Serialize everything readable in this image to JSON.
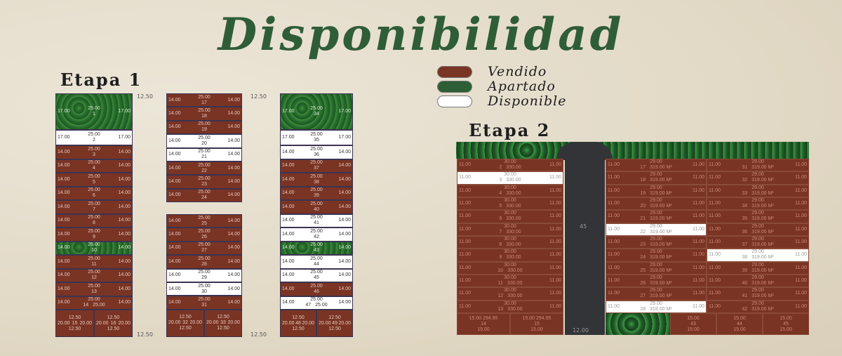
{
  "title": "Disponibilidad",
  "legend": [
    {
      "label": "Vendido",
      "color": "#7a3424"
    },
    {
      "label": "Apartado",
      "color": "#2e5e35"
    },
    {
      "label": "Disponible",
      "color": "#ffffff"
    }
  ],
  "etapa1": {
    "label": "Etapa 1",
    "street_labels": [
      "12.50",
      "12.50",
      "12.50",
      "12.50"
    ],
    "columns": [
      {
        "lots": [
          {
            "n": "1",
            "s": "apartado",
            "top": "25.00",
            "side": "17.00"
          },
          {
            "n": "2",
            "s": "disponible",
            "top": "25.00",
            "side": "17.00"
          },
          {
            "n": "3",
            "s": "vendido"
          },
          {
            "n": "4",
            "s": "vendido"
          },
          {
            "n": "5",
            "s": "vendido"
          },
          {
            "n": "6",
            "s": "vendido"
          },
          {
            "n": "7",
            "s": "vendido"
          },
          {
            "n": "8",
            "s": "vendido"
          },
          {
            "n": "9",
            "s": "vendido"
          },
          {
            "n": "10",
            "s": "apartado"
          },
          {
            "n": "11",
            "s": "vendido"
          },
          {
            "n": "12",
            "s": "vendido"
          },
          {
            "n": "13",
            "s": "vendido"
          },
          {
            "n": "14",
            "s": "vendido",
            "bot": "25.00"
          }
        ],
        "pair": [
          {
            "n": "15",
            "s": "vendido"
          },
          {
            "n": "16",
            "s": "vendido"
          }
        ]
      },
      {
        "lots": [
          {
            "n": "17",
            "s": "vendido"
          },
          {
            "n": "18",
            "s": "vendido"
          },
          {
            "n": "19",
            "s": "vendido"
          },
          {
            "n": "20",
            "s": "disponible"
          },
          {
            "n": "21",
            "s": "disponible"
          },
          {
            "n": "22",
            "s": "vendido"
          },
          {
            "n": "23",
            "s": "vendido"
          },
          {
            "n": "24",
            "s": "vendido"
          }
        ]
      },
      {
        "lots": [
          {
            "n": "25",
            "s": "vendido"
          },
          {
            "n": "26",
            "s": "vendido"
          },
          {
            "n": "27",
            "s": "vendido"
          },
          {
            "n": "28",
            "s": "vendido"
          },
          {
            "n": "29",
            "s": "disponible"
          },
          {
            "n": "30",
            "s": "disponible"
          },
          {
            "n": "31",
            "s": "vendido"
          }
        ],
        "pair": [
          {
            "n": "32",
            "s": "vendido"
          },
          {
            "n": "33",
            "s": "vendido"
          }
        ]
      },
      {
        "lots": [
          {
            "n": "34",
            "s": "apartado",
            "top": "25.00",
            "side": "17.00"
          },
          {
            "n": "35",
            "s": "disponible",
            "top": "25.00",
            "side": "17.00"
          },
          {
            "n": "36",
            "s": "disponible"
          },
          {
            "n": "37",
            "s": "vendido"
          },
          {
            "n": "38",
            "s": "vendido"
          },
          {
            "n": "39",
            "s": "vendido"
          },
          {
            "n": "40",
            "s": "vendido"
          },
          {
            "n": "41",
            "s": "disponible"
          },
          {
            "n": "42",
            "s": "disponible"
          },
          {
            "n": "43",
            "s": "apartado"
          },
          {
            "n": "44",
            "s": "disponible"
          },
          {
            "n": "45",
            "s": "disponible"
          },
          {
            "n": "46",
            "s": "vendido"
          },
          {
            "n": "47",
            "s": "disponible",
            "bot": "25.00"
          }
        ],
        "pair": [
          {
            "n": "48",
            "s": "vendido"
          },
          {
            "n": "49",
            "s": "vendido"
          }
        ]
      }
    ],
    "default_top": "25.00",
    "default_side": "14.00",
    "pair_top": "12.50",
    "pair_side": "20.00"
  },
  "etapa2": {
    "label": "Etapa 2",
    "road_labels": [
      "45",
      "12.00"
    ],
    "left": {
      "top": "30.00",
      "area": "330.00",
      "side": "11.00",
      "lots": [
        {
          "n": "2",
          "s": "vendido"
        },
        {
          "n": "3",
          "s": "disponible"
        },
        {
          "n": "4",
          "s": "vendido"
        },
        {
          "n": "5",
          "s": "vendido"
        },
        {
          "n": "6",
          "s": "vendido"
        },
        {
          "n": "7",
          "s": "vendido"
        },
        {
          "n": "8",
          "s": "vendido"
        },
        {
          "n": "9",
          "s": "vendido"
        },
        {
          "n": "10",
          "s": "vendido"
        },
        {
          "n": "11",
          "s": "vendido"
        },
        {
          "n": "12",
          "s": "vendido"
        },
        {
          "n": "13",
          "s": "vendido"
        }
      ]
    },
    "middle": {
      "top": "29.00",
      "area": "319.00 M²",
      "side": "11.00",
      "lots": [
        {
          "n": "17",
          "s": "vendido"
        },
        {
          "n": "18",
          "s": "vendido"
        },
        {
          "n": "19",
          "s": "vendido"
        },
        {
          "n": "20",
          "s": "vendido"
        },
        {
          "n": "21",
          "s": "vendido"
        },
        {
          "n": "22",
          "s": "disponible"
        },
        {
          "n": "23",
          "s": "vendido"
        },
        {
          "n": "24",
          "s": "vendido"
        },
        {
          "n": "25",
          "s": "vendido"
        },
        {
          "n": "26",
          "s": "vendido"
        },
        {
          "n": "27",
          "s": "vendido"
        },
        {
          "n": "28",
          "s": "disponible"
        }
      ]
    },
    "right": {
      "top": "29.00",
      "area": "319.00 M²",
      "side": "11.00",
      "lots": [
        {
          "n": "31",
          "s": "vendido"
        },
        {
          "n": "32",
          "s": "vendido"
        },
        {
          "n": "33",
          "s": "vendido"
        },
        {
          "n": "34",
          "s": "vendido"
        },
        {
          "n": "35",
          "s": "vendido"
        },
        {
          "n": "36",
          "s": "vendido"
        },
        {
          "n": "37",
          "s": "vendido"
        },
        {
          "n": "38",
          "s": "disponible"
        },
        {
          "n": "39",
          "s": "vendido"
        },
        {
          "n": "40",
          "s": "vendido"
        },
        {
          "n": "41",
          "s": "vendido"
        },
        {
          "n": "42",
          "s": "vendido"
        }
      ]
    },
    "bottom_left": [
      {
        "n": "14",
        "s": "vendido",
        "top": "15.00",
        "area": "294.95"
      },
      {
        "n": "15",
        "s": "vendido",
        "top": "15.00",
        "area": "294.95"
      }
    ],
    "bottom_right": [
      {
        "n": "43",
        "s": "vendido",
        "top": "15.00"
      },
      {
        "n": "44",
        "s": "vendido",
        "top": "15.00"
      },
      {
        "n": "45",
        "s": "vendido",
        "top": "15.00"
      }
    ]
  }
}
